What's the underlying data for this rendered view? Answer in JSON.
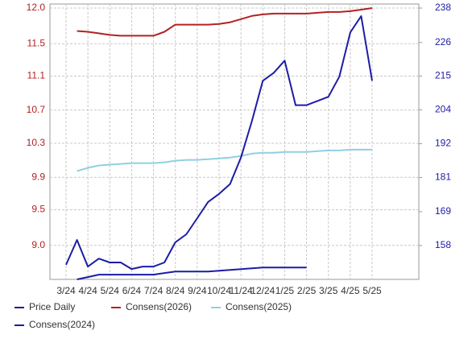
{
  "chart_data": {
    "type": "line",
    "categories": [
      "3/24",
      null,
      "4/24",
      null,
      "5/24",
      null,
      "6/24",
      null,
      "7/24",
      null,
      "8/24",
      null,
      "9/24",
      null,
      "10/24",
      null,
      "11/24",
      null,
      "12/24",
      null,
      "1/25",
      null,
      "2/25",
      null,
      "3/25",
      null,
      "4/25",
      null,
      "5/25"
    ],
    "ylim": [
      8.57,
      12.0
    ],
    "yticks": [
      {
        "value": 12.0,
        "label": "12.0"
      },
      {
        "value": 11.549,
        "label": "11.5"
      },
      {
        "value": 11.14,
        "label": "11.1"
      },
      {
        "value": 10.71,
        "label": "10.7"
      },
      {
        "value": 10.29,
        "label": "10.3"
      },
      {
        "value": 9.86,
        "label": "9.9"
      },
      {
        "value": 9.45,
        "label": "9.5"
      },
      {
        "value": 9.0,
        "label": "9.0"
      }
    ],
    "y2lim": [
      146.6,
      238
    ],
    "y2ticks": [
      238,
      {
        "value": 226.4,
        "label": "226"
      },
      {
        "value": 215.1,
        "label": "215"
      },
      {
        "value": 203.7,
        "label": "204"
      },
      {
        "value": 192.3,
        "label": "192"
      },
      {
        "value": 180.9,
        "label": "181"
      },
      {
        "value": 169.4,
        "label": "169"
      },
      158
    ],
    "grid": true,
    "series": [
      {
        "name": "Price Daily",
        "color": "#1c1ca6",
        "axis": "y2",
        "values": [
          151.5,
          159.9,
          150.9,
          153.6,
          152.3,
          152.3,
          150.1,
          150.9,
          150.9,
          152.3,
          159.1,
          161.8,
          167.2,
          172.7,
          175.4,
          178.7,
          187.6,
          199.9,
          213.5,
          216.2,
          220.3,
          205.3,
          205.3,
          206.7,
          208.1,
          214.9,
          229.8,
          235.3,
          213.5
        ]
      },
      {
        "name": "Consens(2026)",
        "color": "#b22222",
        "values": [
          null,
          11.71,
          11.7,
          11.68,
          11.66,
          11.65,
          11.65,
          11.65,
          11.65,
          11.7,
          11.79,
          11.79,
          11.79,
          11.79,
          11.8,
          11.82,
          11.86,
          11.9,
          11.92,
          11.93,
          11.93,
          11.93,
          11.93,
          11.94,
          11.95,
          11.95,
          11.96,
          11.98,
          12.0
        ]
      },
      {
        "name": "Consens(2025)",
        "color": "#8fd0e2",
        "values": [
          null,
          9.94,
          9.98,
          10.01,
          10.02,
          10.03,
          10.04,
          10.04,
          10.04,
          10.05,
          10.07,
          10.08,
          10.08,
          10.09,
          10.1,
          10.11,
          10.13,
          10.16,
          10.17,
          10.17,
          10.18,
          10.18,
          10.18,
          10.19,
          10.2,
          10.2,
          10.21,
          10.21,
          10.21
        ]
      },
      {
        "name": "Consens(2024)",
        "color": "#1c1ca6",
        "values": [
          null,
          8.57,
          8.6,
          8.63,
          8.63,
          8.63,
          8.63,
          8.63,
          8.63,
          8.65,
          8.67,
          8.67,
          8.67,
          8.67,
          8.68,
          8.69,
          8.7,
          8.71,
          8.72,
          8.72,
          8.72,
          8.72,
          8.72,
          null,
          null,
          null,
          null,
          null,
          null
        ]
      }
    ]
  }
}
